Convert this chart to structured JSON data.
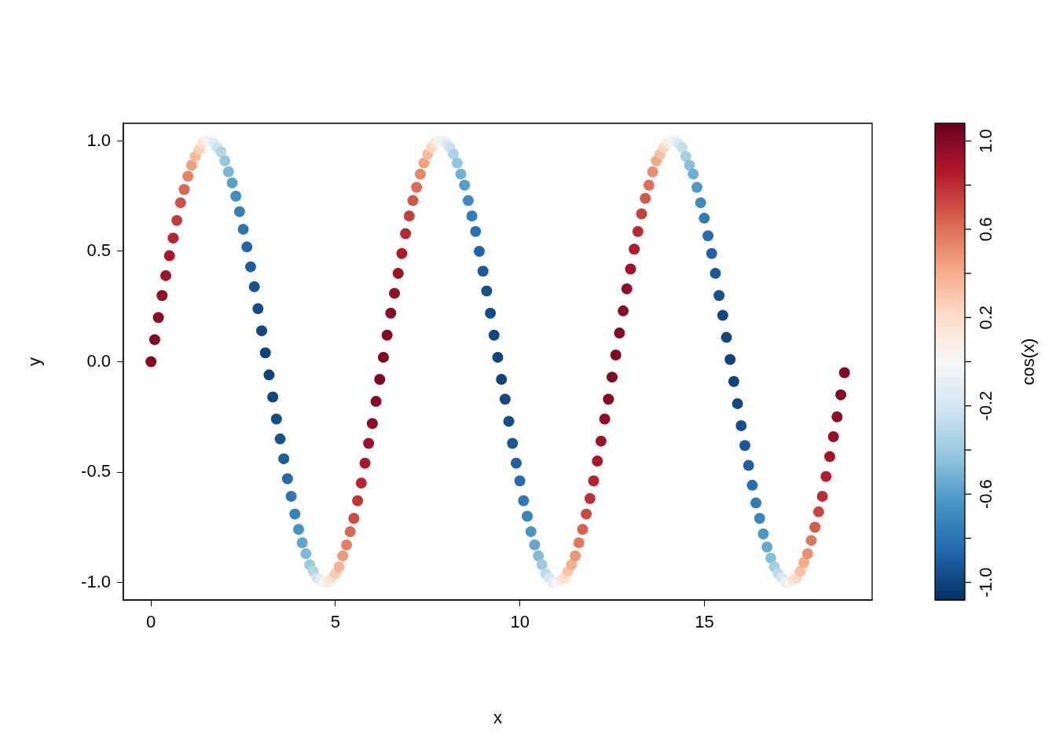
{
  "chart_data": {
    "type": "scatter",
    "xlabel": "x",
    "ylabel": "y",
    "clabel": "cos(x)",
    "marker": "circle",
    "grid": false,
    "legend": false,
    "xlim": [
      -0.75,
      19.55
    ],
    "xticks": [
      0,
      5,
      10,
      15
    ],
    "ylim": [
      -1.08,
      1.08
    ],
    "yticks": [
      {
        "value": -1,
        "label": "-1.0"
      },
      {
        "value": -0.5,
        "label": "-0.5"
      },
      {
        "value": 0,
        "label": "0.0"
      },
      {
        "value": 0.5,
        "label": "0.5"
      },
      {
        "value": 1,
        "label": "1.0"
      }
    ],
    "clim": [
      -1.08,
      1.08
    ],
    "cticks": [
      {
        "value": 1,
        "label": "1.0"
      },
      {
        "value": 0.8,
        "label": null
      },
      {
        "value": 0.6,
        "label": "0.6"
      },
      {
        "value": 0.4,
        "label": null
      },
      {
        "value": 0.2,
        "label": "0.2"
      },
      {
        "value": 0,
        "label": null
      },
      {
        "value": -0.2,
        "label": "-0.2"
      },
      {
        "value": -0.4,
        "label": null
      },
      {
        "value": -0.6,
        "label": "-0.6"
      },
      {
        "value": -0.8,
        "label": null
      },
      {
        "value": -1,
        "label": "-1.0"
      }
    ],
    "x": [
      0,
      0.1,
      0.2,
      0.3,
      0.4,
      0.5,
      0.6,
      0.7,
      0.8,
      0.9,
      1,
      1.1,
      1.2,
      1.3,
      1.4,
      1.5,
      1.6,
      1.7,
      1.8,
      1.9,
      2,
      2.1,
      2.2,
      2.3,
      2.4,
      2.5,
      2.6,
      2.7,
      2.8,
      2.9,
      3,
      3.1,
      3.2,
      3.3,
      3.4,
      3.5,
      3.6,
      3.7,
      3.8,
      3.9,
      4,
      4.1,
      4.2,
      4.3,
      4.4,
      4.5,
      4.6,
      4.7,
      4.8,
      4.9,
      5,
      5.1,
      5.2,
      5.3,
      5.4,
      5.5,
      5.6,
      5.7,
      5.8,
      5.9,
      6,
      6.1,
      6.2,
      6.3,
      6.4,
      6.5,
      6.6,
      6.7,
      6.8,
      6.9,
      7,
      7.1,
      7.2,
      7.3,
      7.4,
      7.5,
      7.6,
      7.7,
      7.8,
      7.9,
      8,
      8.1,
      8.2,
      8.3,
      8.4,
      8.5,
      8.6,
      8.7,
      8.8,
      8.9,
      9,
      9.1,
      9.2,
      9.3,
      9.4,
      9.5,
      9.6,
      9.7,
      9.8,
      9.9,
      10,
      10.1,
      10.2,
      10.3,
      10.4,
      10.5,
      10.6,
      10.7,
      10.8,
      10.9,
      11,
      11.1,
      11.2,
      11.3,
      11.4,
      11.5,
      11.6,
      11.7,
      11.8,
      11.9,
      12,
      12.1,
      12.2,
      12.3,
      12.4,
      12.5,
      12.6,
      12.7,
      12.8,
      12.9,
      13,
      13.1,
      13.2,
      13.3,
      13.4,
      13.5,
      13.6,
      13.7,
      13.8,
      13.9,
      14,
      14.1,
      14.2,
      14.3,
      14.4,
      14.5,
      14.6,
      14.7,
      14.8,
      14.9,
      15,
      15.1,
      15.2,
      15.3,
      15.4,
      15.5,
      15.6,
      15.7,
      15.8,
      15.9,
      16,
      16.1,
      16.2,
      16.3,
      16.4,
      16.5,
      16.6,
      16.7,
      16.8,
      16.9,
      17,
      17.1,
      17.2,
      17.3,
      17.4,
      17.5,
      17.6,
      17.7,
      17.8,
      17.9,
      18,
      18.1,
      18.2,
      18.3,
      18.4,
      18.5,
      18.6,
      18.7,
      18.8
    ],
    "values": [
      0,
      0.1,
      0.2,
      0.3,
      0.39,
      0.48,
      0.56,
      0.64,
      0.72,
      0.78,
      0.84,
      0.89,
      0.93,
      0.96,
      0.99,
      1,
      1,
      0.99,
      0.97,
      0.95,
      0.91,
      0.86,
      0.81,
      0.75,
      0.68,
      0.6,
      0.52,
      0.43,
      0.34,
      0.24,
      0.14,
      0.04,
      -0.06,
      -0.16,
      -0.26,
      -0.35,
      -0.44,
      -0.53,
      -0.61,
      -0.69,
      -0.76,
      -0.82,
      -0.87,
      -0.92,
      -0.95,
      -0.98,
      -0.99,
      -1,
      -1,
      -0.98,
      -0.96,
      -0.93,
      -0.88,
      -0.83,
      -0.77,
      -0.71,
      -0.63,
      -0.55,
      -0.46,
      -0.37,
      -0.28,
      -0.18,
      -0.08,
      0.02,
      0.12,
      0.22,
      0.31,
      0.4,
      0.49,
      0.58,
      0.66,
      0.73,
      0.79,
      0.85,
      0.9,
      0.94,
      0.97,
      0.99,
      1,
      1,
      0.99,
      0.97,
      0.94,
      0.9,
      0.85,
      0.8,
      0.73,
      0.66,
      0.59,
      0.5,
      0.41,
      0.32,
      0.22,
      0.12,
      0.02,
      -0.08,
      -0.17,
      -0.27,
      -0.37,
      -0.46,
      -0.54,
      -0.63,
      -0.7,
      -0.77,
      -0.83,
      -0.88,
      -0.92,
      -0.96,
      -0.98,
      -1,
      -1,
      -0.99,
      -0.98,
      -0.95,
      -0.92,
      -0.88,
      -0.82,
      -0.76,
      -0.69,
      -0.62,
      -0.54,
      -0.45,
      -0.36,
      -0.26,
      -0.17,
      -0.07,
      0.03,
      0.13,
      0.23,
      0.33,
      0.42,
      0.51,
      0.59,
      0.67,
      0.74,
      0.8,
      0.86,
      0.91,
      0.94,
      0.97,
      0.99,
      1,
      1,
      0.99,
      0.97,
      0.93,
      0.89,
      0.85,
      0.79,
      0.72,
      0.65,
      0.57,
      0.49,
      0.4,
      0.3,
      0.21,
      0.11,
      0.01,
      -0.09,
      -0.19,
      -0.29,
      -0.38,
      -0.47,
      -0.56,
      -0.64,
      -0.71,
      -0.78,
      -0.84,
      -0.89,
      -0.93,
      -0.96,
      -0.98,
      -1,
      -1,
      -0.99,
      -0.98,
      -0.95,
      -0.91,
      -0.87,
      -0.81,
      -0.75,
      -0.68,
      -0.61,
      -0.52,
      -0.43,
      -0.34,
      -0.25,
      -0.15,
      -0.05
    ],
    "cvalues": [
      1,
      1,
      0.98,
      0.96,
      0.92,
      0.88,
      0.83,
      0.76,
      0.7,
      0.62,
      0.54,
      0.45,
      0.36,
      0.27,
      0.17,
      0.07,
      -0.03,
      -0.13,
      -0.23,
      -0.32,
      -0.42,
      -0.5,
      -0.59,
      -0.67,
      -0.74,
      -0.8,
      -0.86,
      -0.9,
      -0.94,
      -0.97,
      -0.99,
      -1,
      -1,
      -0.99,
      -0.97,
      -0.94,
      -0.9,
      -0.85,
      -0.79,
      -0.73,
      -0.65,
      -0.57,
      -0.49,
      -0.4,
      -0.31,
      -0.21,
      -0.11,
      -0.01,
      0.09,
      0.19,
      0.28,
      0.38,
      0.47,
      0.55,
      0.63,
      0.71,
      0.78,
      0.83,
      0.89,
      0.93,
      0.96,
      0.98,
      1,
      1,
      0.99,
      0.98,
      0.95,
      0.91,
      0.87,
      0.82,
      0.75,
      0.68,
      0.61,
      0.53,
      0.44,
      0.35,
      0.25,
      0.15,
      0.05,
      -0.05,
      -0.15,
      -0.24,
      -0.34,
      -0.43,
      -0.52,
      -0.6,
      -0.68,
      -0.75,
      -0.81,
      -0.87,
      -0.91,
      -0.95,
      -0.97,
      -0.99,
      -1,
      -1,
      -0.98,
      -0.96,
      -0.93,
      -0.89,
      -0.84,
      -0.78,
      -0.71,
      -0.64,
      -0.56,
      -0.48,
      -0.39,
      -0.29,
      -0.19,
      -0.1,
      0,
      0.1,
      0.2,
      0.3,
      0.39,
      0.48,
      0.57,
      0.65,
      0.72,
      0.79,
      0.84,
      0.89,
      0.93,
      0.96,
      0.99,
      1,
      1,
      0.99,
      0.97,
      0.95,
      0.91,
      0.86,
      0.81,
      0.74,
      0.67,
      0.6,
      0.51,
      0.42,
      0.33,
      0.24,
      0.14,
      0.04,
      -0.06,
      -0.16,
      -0.26,
      -0.36,
      -0.45,
      -0.53,
      -0.62,
      -0.69,
      -0.76,
      -0.82,
      -0.87,
      -0.92,
      -0.95,
      -0.98,
      -0.99,
      -1,
      -1,
      -0.98,
      -0.96,
      -0.92,
      -0.88,
      -0.83,
      -0.77,
      -0.7,
      -0.63,
      -0.55,
      -0.46,
      -0.37,
      -0.28,
      -0.18,
      -0.08,
      0.02,
      0.12,
      0.22,
      0.32,
      0.41,
      0.5,
      0.58,
      0.66,
      0.73,
      0.8,
      0.85,
      0.9,
      0.94,
      0.97,
      0.99,
      1
    ]
  }
}
